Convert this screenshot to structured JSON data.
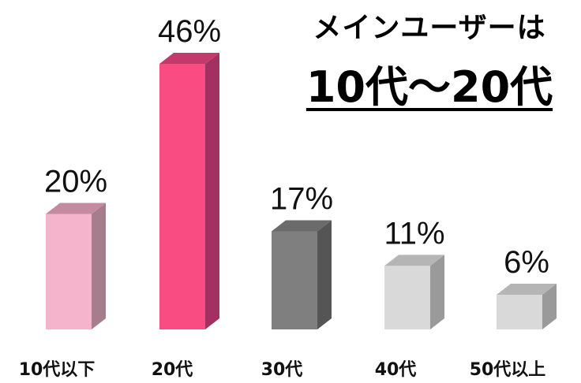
{
  "title": {
    "line1": "メインユーザーは",
    "line2": "10代〜20代"
  },
  "chart_data": {
    "type": "bar",
    "categories": [
      "10代以下",
      "20代",
      "30代",
      "40代",
      "50代以上"
    ],
    "values": [
      20,
      46,
      17,
      11,
      6
    ],
    "value_labels": [
      "20%",
      "46%",
      "17%",
      "11%",
      "6%"
    ],
    "ylim": [
      0,
      46
    ],
    "grid": false,
    "legend": "none",
    "colors": [
      {
        "front": "#f6b3cc",
        "side": "#a67d8c",
        "top": "#c48ba0"
      },
      {
        "front": "#f94c83",
        "side": "#a33060",
        "top": "#c23a6c"
      },
      {
        "front": "#7f7f7f",
        "side": "#555555",
        "top": "#6b6b6b"
      },
      {
        "front": "#d9d9d9",
        "side": "#9a9a9a",
        "top": "#b5b5b5"
      },
      {
        "front": "#d9d9d9",
        "side": "#9a9a9a",
        "top": "#b5b5b5"
      }
    ]
  }
}
